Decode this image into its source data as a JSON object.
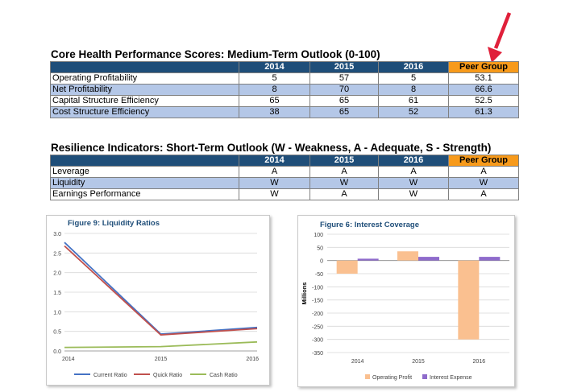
{
  "table1": {
    "title": "Core Health Performance Scores: Medium-Term Outlook (0-100)",
    "headers": [
      "",
      "2014",
      "2015",
      "2016",
      "Peer Group"
    ],
    "rows": [
      {
        "label": "Operating Profitability",
        "values": [
          "5",
          "57",
          "5",
          "53.1"
        ]
      },
      {
        "label": "Net Profitability",
        "values": [
          "8",
          "70",
          "8",
          "66.6"
        ]
      },
      {
        "label": "Capital Structure Efficiency",
        "values": [
          "65",
          "65",
          "61",
          "52.5"
        ]
      },
      {
        "label": "Cost Structure Efficiency",
        "values": [
          "38",
          "65",
          "52",
          "61.3"
        ]
      }
    ]
  },
  "table2": {
    "title": "Resilience Indicators: Short-Term Outlook (W - Weakness, A -  Adequate, S - Strength)",
    "headers": [
      "",
      "2014",
      "2015",
      "2016",
      "Peer Group"
    ],
    "rows": [
      {
        "label": "Leverage",
        "values": [
          "A",
          "A",
          "A",
          "A"
        ]
      },
      {
        "label": "Liquidity",
        "values": [
          "W",
          "W",
          "W",
          "W"
        ]
      },
      {
        "label": "Earnings Performance",
        "values": [
          "W",
          "A",
          "W",
          "A"
        ]
      }
    ]
  },
  "arrow_color": "#e0203a",
  "chart_data": [
    {
      "type": "line",
      "title": "Figure 9: Liquidity Ratios",
      "x": [
        "2014",
        "2015",
        "2016"
      ],
      "ylim": [
        0,
        3.0
      ],
      "yticks": [
        "0.0",
        "0.5",
        "1.0",
        "1.5",
        "2.0",
        "2.5",
        "3.0"
      ],
      "grid": true,
      "legend": "bottom",
      "series": [
        {
          "name": "Current Ratio",
          "color": "#4472c4",
          "values": [
            2.77,
            0.43,
            0.6
          ]
        },
        {
          "name": "Quick Ratio",
          "color": "#c0504d",
          "values": [
            2.68,
            0.41,
            0.57
          ]
        },
        {
          "name": "Cash Ratio",
          "color": "#9bbb59",
          "values": [
            0.09,
            0.11,
            0.23
          ]
        }
      ]
    },
    {
      "type": "bar",
      "title": "Figure 6: Interest Coverage",
      "categories": [
        "2014",
        "2015",
        "2016"
      ],
      "ylabel": "Millions",
      "ylim": [
        -350,
        100
      ],
      "yticks": [
        "100",
        "50",
        "0",
        "-50",
        "-100",
        "-150",
        "-200",
        "-250",
        "-300",
        "-350"
      ],
      "grid": true,
      "legend": "bottom",
      "series": [
        {
          "name": "Operating Profit",
          "color": "#fac090",
          "values": [
            -50,
            35,
            -300
          ]
        },
        {
          "name": "Interest Expense",
          "color": "#8e6bcb",
          "values": [
            7,
            14,
            14
          ]
        }
      ]
    }
  ]
}
